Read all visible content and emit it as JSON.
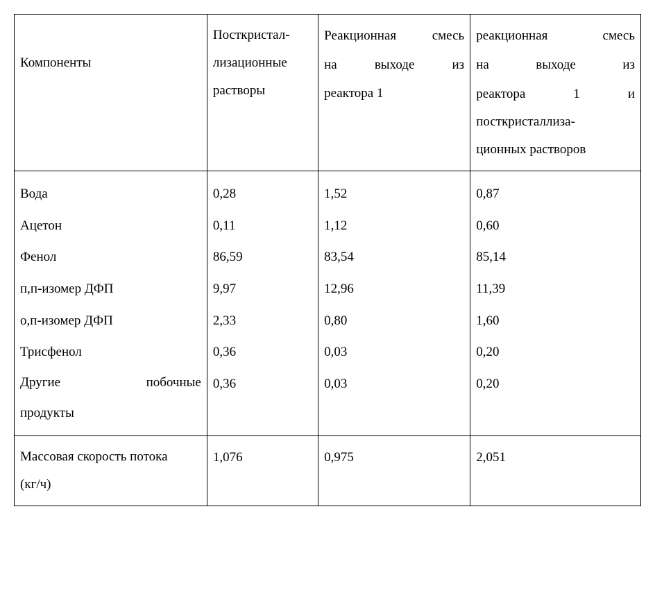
{
  "table": {
    "columns": [
      {
        "header_lines": [
          "",
          "Компоненты",
          ""
        ]
      },
      {
        "header_lines": [
          "Посткристал-",
          "лизационные",
          "растворы"
        ]
      },
      {
        "header_lines_justified": [
          [
            "Реакционная",
            "смесь"
          ],
          [
            "на",
            "выходе",
            "из"
          ]
        ],
        "header_tail": "реактора 1"
      },
      {
        "header_lines_justified": [
          [
            "реакционная",
            "смесь"
          ],
          [
            "на",
            "выходе",
            "из"
          ],
          [
            "реактора",
            "1",
            "и"
          ]
        ],
        "header_tail_lines": [
          "посткристаллиза-",
          "ционных растворов"
        ]
      }
    ],
    "body": {
      "components": [
        {
          "label": "Вода",
          "v1": "0,28",
          "v2": "1,52",
          "v3": "0,87"
        },
        {
          "label": "Ацетон",
          "v1": "0,11",
          "v2": "1,12",
          "v3": "0,60"
        },
        {
          "label": "Фенол",
          "v1": "86,59",
          "v2": "83,54",
          "v3": "85,14"
        },
        {
          "label": "п,п-изомер ДФП",
          "v1": "9,97",
          "v2": "12,96",
          "v3": "11,39"
        },
        {
          "label": "о,п-изомер ДФП",
          "v1": "2,33",
          "v2": "0,80",
          "v3": "1,60"
        },
        {
          "label": "Трисфенол",
          "v1": "0,36",
          "v2": "0,03",
          "v3": "0,20"
        }
      ],
      "last_component": {
        "label_parts": [
          "Другие",
          "побочные"
        ],
        "label_line2": "продукты",
        "v1": "0,36",
        "v2": "0,03",
        "v3": "0,20"
      }
    },
    "footer": {
      "label_line1": "Массовая скорость потока",
      "label_line2": "(кг/ч)",
      "v1": "1,076",
      "v2": "0,975",
      "v3": "2,051"
    }
  },
  "style": {
    "font_family": "Times New Roman",
    "font_size_pt": 14,
    "border_color": "#000000",
    "background": "#ffffff"
  }
}
